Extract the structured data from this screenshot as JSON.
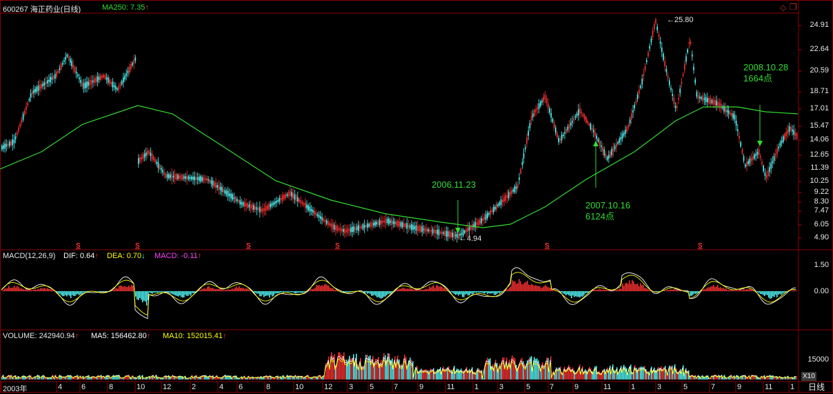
{
  "header": {
    "code": "600267",
    "name": "海正药业(日线)",
    "ma_label": "MA250: 7.35",
    "arrow": "↑"
  },
  "price_axis": [
    "24.91",
    "22.64",
    "20.59",
    "18.71",
    "17.01",
    "15.47",
    "14.06",
    "12.65",
    "11.39",
    "10.25",
    "9.22",
    "8.30",
    "7.47",
    "6.05",
    "4.90"
  ],
  "macd": {
    "title": "MACD(12,26,9)",
    "dif": "DIF: 0.64",
    "dea": "DEA: 0.70",
    "macd": "MACD: -0.11",
    "axis": [
      "1.50",
      "0.00"
    ]
  },
  "volume": {
    "title": "VOLUME: 242940.94",
    "ma5": "MA5: 156462.80",
    "ma10": "MA10: 152015.41",
    "axis": [
      "15000"
    ],
    "unit": "X10"
  },
  "time_axis": [
    "2003年",
    "4",
    "6",
    "8",
    "10",
    "12",
    "2",
    "4",
    "6",
    "8",
    "10",
    "12",
    "3",
    "5",
    "7",
    "9",
    "11",
    "1",
    "3",
    "5",
    "7",
    "9",
    "11",
    "1",
    "3",
    "5",
    "7",
    "9",
    "11",
    "1"
  ],
  "period_label": "日线",
  "annotations": {
    "high_price": "25.80",
    "low_price": "4.94",
    "a1": "2006.11.23",
    "a2_date": "2007.10.16",
    "a2_value": "6124点",
    "a3_date": "2008.10.28",
    "a3_value": "1664点",
    "marker": "S"
  },
  "colors": {
    "up": "#ff3232",
    "down": "#54ffff",
    "ma": "#33dd33",
    "dif": "#ffffff",
    "dea": "#ffff00",
    "grid": "#8b0000"
  }
}
